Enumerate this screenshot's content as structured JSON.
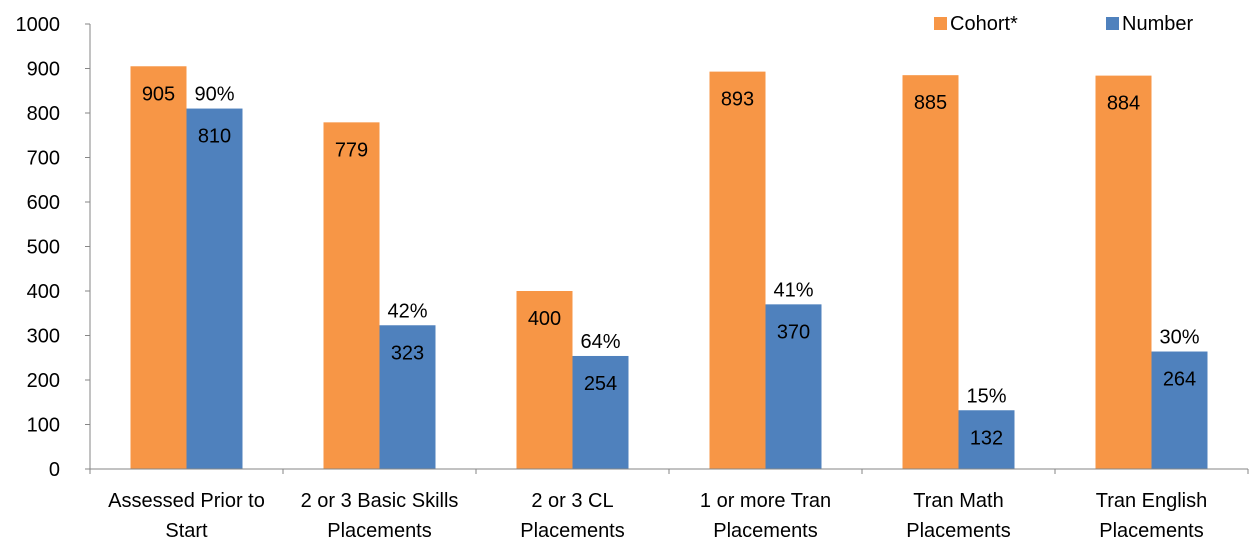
{
  "chart_data": {
    "type": "bar",
    "categories": [
      [
        "Assessed Prior to",
        "Start"
      ],
      [
        "2 or 3 Basic Skills",
        "Placements"
      ],
      [
        "2 or 3 CL",
        "Placements"
      ],
      [
        "1 or more Tran",
        "Placements"
      ],
      [
        "Tran Math",
        "Placements"
      ],
      [
        "Tran English",
        "Placements"
      ]
    ],
    "series": [
      {
        "name": "Cohort*",
        "color": "#F79646",
        "values": [
          905,
          779,
          400,
          893,
          885,
          884
        ],
        "labels": [
          "905",
          "779",
          "400",
          "893",
          "885",
          "884"
        ]
      },
      {
        "name": "Number",
        "color": "#4F81BD",
        "values": [
          810,
          323,
          254,
          370,
          132,
          264
        ],
        "labels": [
          "810",
          "323",
          "254",
          "370",
          "132",
          "264"
        ],
        "percent_labels": [
          "90%",
          "42%",
          "64%",
          "41%",
          "15%",
          "30%"
        ]
      }
    ],
    "ylim": [
      0,
      1000
    ],
    "yticks": [
      "0",
      "100",
      "200",
      "300",
      "400",
      "500",
      "600",
      "700",
      "800",
      "900",
      "1000"
    ],
    "grid": false,
    "legend_position": "top-right",
    "title": "",
    "xlabel": "",
    "ylabel": ""
  }
}
